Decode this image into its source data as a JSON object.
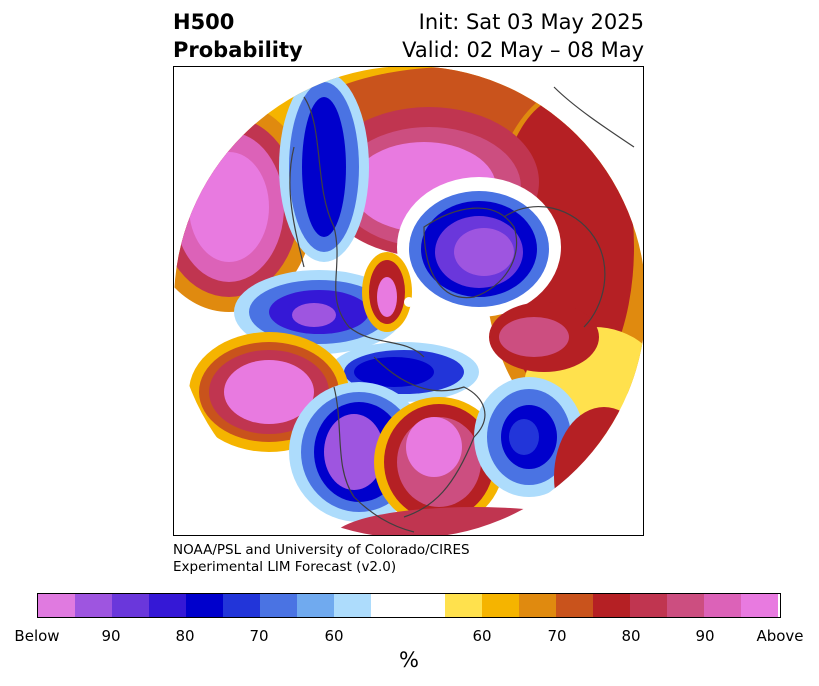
{
  "title": {
    "line1": "H500",
    "line2": "Probability"
  },
  "info": {
    "init": "Init: Sat 03 May 2025",
    "valid": "Valid: 02 May – 08 May"
  },
  "credit": {
    "line1": "NOAA/PSL and University of Colorado/CIRES",
    "line2": "Experimental LIM Forecast (v2.0)"
  },
  "colorbar": {
    "colors": [
      "#e07ae0",
      "#9e55e0",
      "#6a37db",
      "#3518d6",
      "#0000cc",
      "#2235d9",
      "#4a73e3",
      "#70aaef",
      "#addcfc",
      "#ffffff",
      "#ffe14d",
      "#f5b400",
      "#e08a0f",
      "#c9531c",
      "#b52024",
      "#c03550",
      "#cc4e80",
      "#dc62b8",
      "#e87ae0"
    ],
    "tick_labels": [
      "Below",
      "90",
      "80",
      "70",
      "60",
      "60",
      "70",
      "80",
      "90",
      "Above"
    ],
    "unit": "%"
  }
}
